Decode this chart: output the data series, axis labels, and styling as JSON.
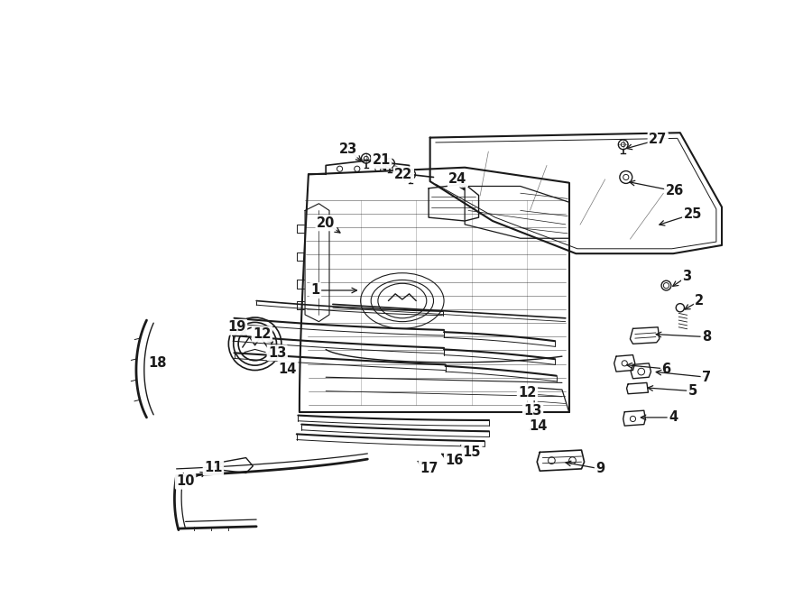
{
  "bg_color": "#ffffff",
  "line_color": "#1a1a1a",
  "figsize": [
    9.0,
    6.62
  ],
  "dpi": 100,
  "callouts": [
    [
      "1",
      305,
      315,
      370,
      315,
      "right"
    ],
    [
      "2",
      858,
      330,
      832,
      345,
      "left"
    ],
    [
      "3",
      840,
      295,
      815,
      312,
      "left"
    ],
    [
      "4",
      820,
      498,
      768,
      498,
      "left"
    ],
    [
      "5",
      848,
      460,
      778,
      455,
      "left"
    ],
    [
      "6",
      810,
      428,
      748,
      422,
      "left"
    ],
    [
      "7",
      868,
      440,
      790,
      432,
      "left"
    ],
    [
      "8",
      868,
      382,
      790,
      378,
      "left"
    ],
    [
      "9",
      715,
      572,
      660,
      562,
      "left"
    ],
    [
      "10",
      118,
      590,
      152,
      575,
      "right"
    ],
    [
      "11",
      158,
      570,
      175,
      560,
      "right"
    ],
    [
      "12",
      228,
      378,
      248,
      393,
      "right"
    ],
    [
      "12",
      610,
      462,
      595,
      472,
      "left"
    ],
    [
      "13",
      250,
      405,
      268,
      415,
      "right"
    ],
    [
      "13",
      618,
      488,
      600,
      496,
      "left"
    ],
    [
      "14",
      265,
      428,
      280,
      437,
      "right"
    ],
    [
      "14",
      625,
      510,
      608,
      518,
      "left"
    ],
    [
      "15",
      530,
      548,
      510,
      535,
      "right"
    ],
    [
      "16",
      505,
      560,
      482,
      548,
      "right"
    ],
    [
      "17",
      468,
      572,
      448,
      558,
      "right"
    ],
    [
      "18",
      78,
      420,
      88,
      432,
      "right"
    ],
    [
      "19",
      192,
      368,
      210,
      385,
      "right"
    ],
    [
      "20",
      320,
      218,
      345,
      235,
      "right"
    ],
    [
      "21",
      400,
      128,
      408,
      148,
      "right"
    ],
    [
      "22",
      432,
      148,
      435,
      162,
      "right"
    ],
    [
      "23",
      352,
      112,
      375,
      132,
      "right"
    ],
    [
      "24",
      510,
      155,
      522,
      175,
      "right"
    ],
    [
      "25",
      848,
      205,
      795,
      222,
      "left"
    ],
    [
      "26",
      822,
      172,
      752,
      158,
      "left"
    ],
    [
      "27",
      798,
      98,
      748,
      112,
      "left"
    ]
  ]
}
